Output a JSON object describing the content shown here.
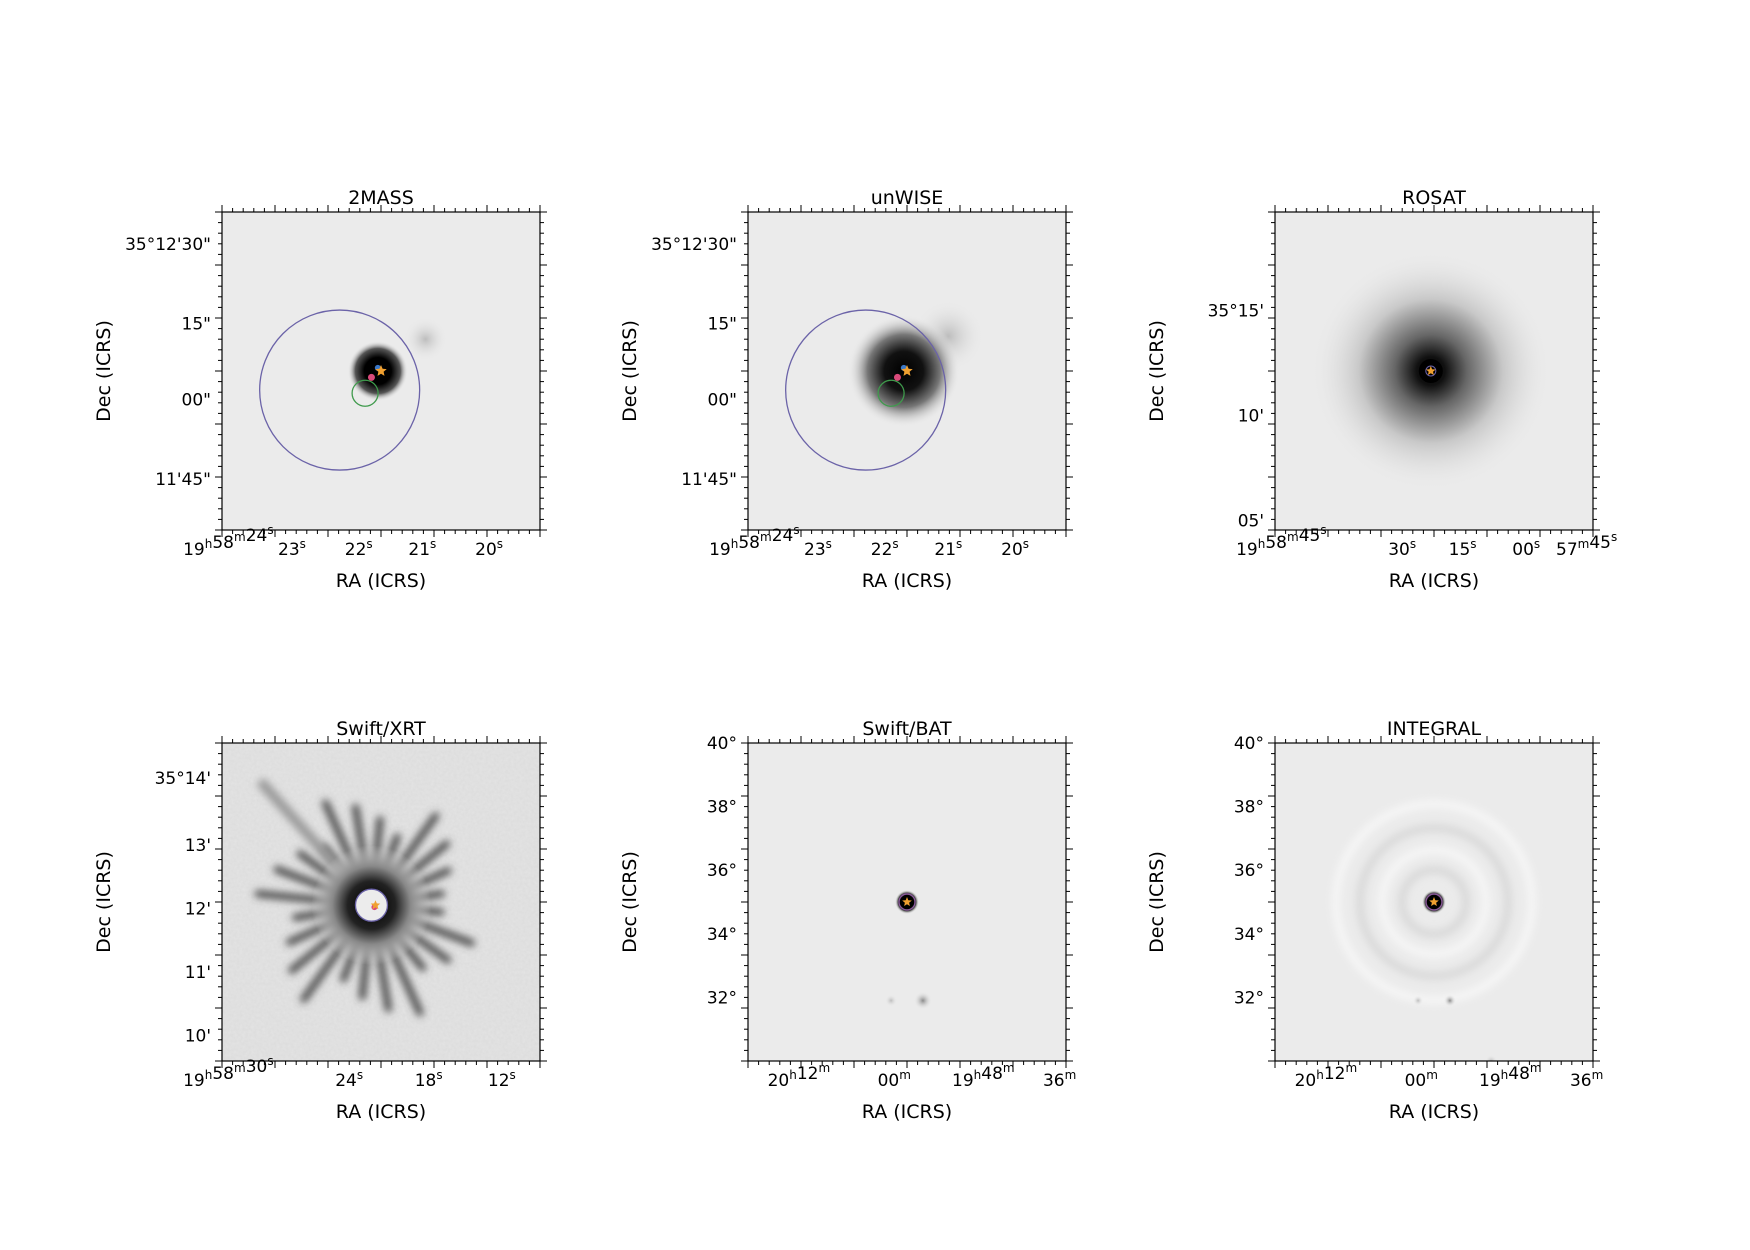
{
  "colors": {
    "background": "#ebebeb",
    "source_core": "#000000",
    "large_circle": "#6b63a8",
    "small_circle": "#3f9a4c",
    "marker_star": "#f0a030",
    "marker_pink": "#d94a7a",
    "marker_blue": "#3a78c8"
  },
  "panels": [
    {
      "id": "2mass",
      "title": "2MASS",
      "xlabel": "RA (ICRS)",
      "ylabel": "Dec (ICRS)",
      "xticks": [
        "19h58m24s",
        "23s",
        "22s",
        "21s",
        "20s"
      ],
      "yticks": [
        "35°12'30\"",
        "15\"",
        "00\"",
        "11'45\""
      ],
      "image": "compact-source"
    },
    {
      "id": "unwise",
      "title": "unWISE",
      "xlabel": "RA (ICRS)",
      "ylabel": "Dec (ICRS)",
      "xticks": [
        "19h58m24s",
        "23s",
        "22s",
        "21s",
        "20s"
      ],
      "yticks": [
        "35°12'30\"",
        "15\"",
        "00\"",
        "11'45\""
      ],
      "image": "extended-source"
    },
    {
      "id": "rosat",
      "title": "ROSAT",
      "xlabel": "RA (ICRS)",
      "ylabel": "Dec (ICRS)",
      "xticks": [
        "19h58m45s",
        "30s",
        "15s",
        "00s",
        "57m45s"
      ],
      "yticks": [
        "35°15'",
        "10'",
        "05'"
      ],
      "image": "diffuse-source"
    },
    {
      "id": "swift-xrt",
      "title": "Swift/XRT",
      "xlabel": "RA (ICRS)",
      "ylabel": "Dec (ICRS)",
      "xticks": [
        "19h58m30s",
        "24s",
        "18s",
        "12s"
      ],
      "yticks": [
        "35°14'",
        "13'",
        "12'",
        "11'",
        "10'"
      ],
      "image": "xrt-psf"
    },
    {
      "id": "swift-bat",
      "title": "Swift/BAT",
      "xlabel": "RA (ICRS)",
      "ylabel": "Dec (ICRS)",
      "xticks": [
        "20h12m",
        "00m",
        "19h48m",
        "36m"
      ],
      "yticks": [
        "40°",
        "38°",
        "36°",
        "34°",
        "32°"
      ],
      "image": "bat-source"
    },
    {
      "id": "integral",
      "title": "INTEGRAL",
      "xlabel": "RA (ICRS)",
      "ylabel": "Dec (ICRS)",
      "xticks": [
        "20h12m",
        "00m",
        "19h48m",
        "36m"
      ],
      "yticks": [
        "40°",
        "38°",
        "36°",
        "34°",
        "32°"
      ],
      "image": "integral-rings"
    }
  ]
}
